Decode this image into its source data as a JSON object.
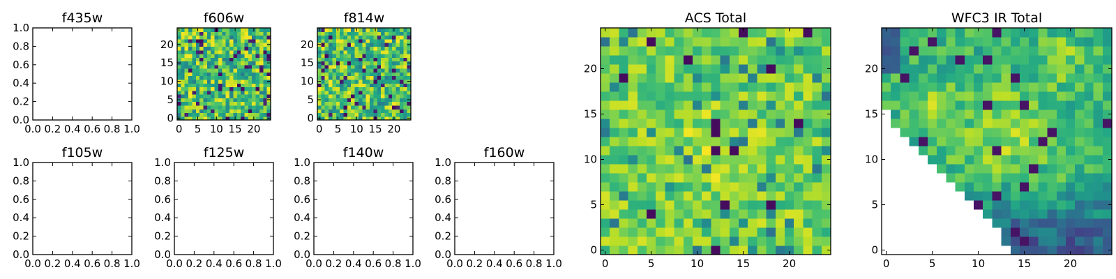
{
  "chart_data": [
    {
      "type": "heatmap",
      "title": "f435w",
      "filled": false,
      "xlim": [
        0,
        1
      ],
      "ylim": [
        0,
        1
      ],
      "xticks": [
        0,
        0.2,
        0.4,
        0.6,
        0.8,
        1
      ],
      "yticks": [
        0,
        0.2,
        0.4,
        0.6,
        0.8,
        1
      ],
      "xticklabels": [
        "0.0",
        "0.2",
        "0.4",
        "0.6",
        "0.8",
        "1.0"
      ],
      "yticklabels": [
        "0.0",
        "0.2",
        "0.4",
        "0.6",
        "0.8",
        "1.0"
      ]
    },
    {
      "type": "heatmap",
      "title": "f606w",
      "filled": true,
      "seed": 606,
      "grid": 25,
      "mode": "noisy",
      "xlim": [
        -0.5,
        24.5
      ],
      "ylim": [
        -0.5,
        24.5
      ],
      "xticks": [
        0,
        5,
        10,
        15,
        20
      ],
      "yticks": [
        0,
        5,
        10,
        15,
        20
      ],
      "xticklabels": [
        "0",
        "5",
        "10",
        "15",
        "20"
      ],
      "yticklabels": [
        "0",
        "5",
        "10",
        "15",
        "20"
      ]
    },
    {
      "type": "heatmap",
      "title": "f814w",
      "filled": true,
      "seed": 814,
      "grid": 25,
      "mode": "noisy",
      "xlim": [
        -0.5,
        24.5
      ],
      "ylim": [
        -0.5,
        24.5
      ],
      "xticks": [
        0,
        5,
        10,
        15,
        20
      ],
      "yticks": [
        0,
        5,
        10,
        15,
        20
      ],
      "xticklabels": [
        "0",
        "5",
        "10",
        "15",
        "20"
      ],
      "yticklabels": [
        "0",
        "5",
        "10",
        "15",
        "20"
      ]
    },
    {
      "type": "heatmap",
      "title": "f105w",
      "filled": false,
      "xlim": [
        0,
        1
      ],
      "ylim": [
        0,
        1
      ],
      "xticks": [
        0,
        0.2,
        0.4,
        0.6,
        0.8,
        1
      ],
      "yticks": [
        0,
        0.2,
        0.4,
        0.6,
        0.8,
        1
      ],
      "xticklabels": [
        "0.0",
        "0.2",
        "0.4",
        "0.6",
        "0.8",
        "1.0"
      ],
      "yticklabels": [
        "0.0",
        "0.2",
        "0.4",
        "0.6",
        "0.8",
        "1.0"
      ]
    },
    {
      "type": "heatmap",
      "title": "f125w",
      "filled": false,
      "xlim": [
        0,
        1
      ],
      "ylim": [
        0,
        1
      ],
      "xticks": [
        0,
        0.2,
        0.4,
        0.6,
        0.8,
        1
      ],
      "yticks": [
        0,
        0.2,
        0.4,
        0.6,
        0.8,
        1
      ],
      "xticklabels": [
        "0.0",
        "0.2",
        "0.4",
        "0.6",
        "0.8",
        "1.0"
      ],
      "yticklabels": [
        "0.0",
        "0.2",
        "0.4",
        "0.6",
        "0.8",
        "1.0"
      ]
    },
    {
      "type": "heatmap",
      "title": "f140w",
      "filled": false,
      "xlim": [
        0,
        1
      ],
      "ylim": [
        0,
        1
      ],
      "xticks": [
        0,
        0.2,
        0.4,
        0.6,
        0.8,
        1
      ],
      "yticks": [
        0,
        0.2,
        0.4,
        0.6,
        0.8,
        1
      ],
      "xticklabels": [
        "0.0",
        "0.2",
        "0.4",
        "0.6",
        "0.8",
        "1.0"
      ],
      "yticklabels": [
        "0.0",
        "0.2",
        "0.4",
        "0.6",
        "0.8",
        "1.0"
      ]
    },
    {
      "type": "heatmap",
      "title": "f160w",
      "filled": false,
      "xlim": [
        0,
        1
      ],
      "ylim": [
        0,
        1
      ],
      "xticks": [
        0,
        0.2,
        0.4,
        0.6,
        0.8,
        1
      ],
      "yticks": [
        0,
        0.2,
        0.4,
        0.6,
        0.8,
        1
      ],
      "xticklabels": [
        "0.0",
        "0.2",
        "0.4",
        "0.6",
        "0.8",
        "1.0"
      ],
      "yticklabels": [
        "0.0",
        "0.2",
        "0.4",
        "0.6",
        "0.8",
        "1.0"
      ]
    },
    {
      "type": "heatmap",
      "title": "ACS Total",
      "filled": true,
      "seed": 4242,
      "grid": 25,
      "mode": "acs",
      "xlim": [
        -0.5,
        24.5
      ],
      "ylim": [
        -0.5,
        24.5
      ],
      "xticks": [
        0,
        5,
        10,
        15,
        20
      ],
      "yticks": [
        0,
        5,
        10,
        15,
        20
      ],
      "xticklabels": [
        "0",
        "5",
        "10",
        "15",
        "20"
      ],
      "yticklabels": [
        "0",
        "5",
        "10",
        "15",
        "20"
      ]
    },
    {
      "type": "heatmap",
      "title": "WFC3 IR Total",
      "filled": true,
      "seed": 777,
      "grid": 25,
      "mode": "wfc3",
      "nan_region": "lower-left wedge",
      "colormap": "viridis",
      "xlim": [
        -0.5,
        24.5
      ],
      "ylim": [
        -0.5,
        24.5
      ],
      "xticks": [
        0,
        5,
        10,
        15,
        20
      ],
      "yticks": [
        0,
        5,
        10,
        15,
        20
      ],
      "xticklabels": [
        "0",
        "5",
        "10",
        "15",
        "20"
      ],
      "yticklabels": [
        "0",
        "5",
        "10",
        "15",
        "20"
      ]
    }
  ]
}
